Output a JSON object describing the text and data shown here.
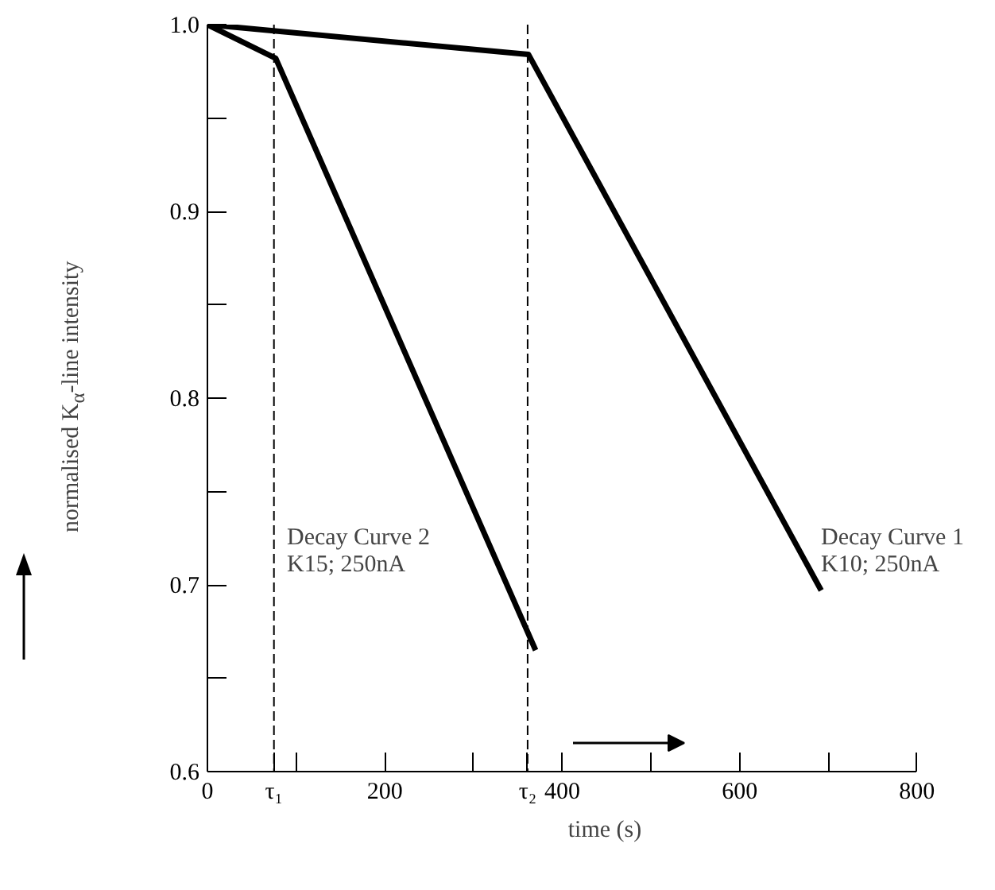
{
  "chart_data": {
    "type": "line",
    "xlabel": "time (s)",
    "ylabel": "normalised K$_{α}$-line intensity",
    "series": [
      {
        "x": [
          0,
          362,
          692
        ],
        "values": [
          1.0,
          0.984,
          0.697
        ],
        "color": "#000000"
      },
      {
        "x": [
          0,
          77,
          370
        ],
        "values": [
          1.0,
          0.982,
          0.665
        ],
        "color": "#000000"
      }
    ],
    "xlim": [
      0,
      800
    ],
    "ylim": [
      0.6,
      1.0
    ],
    "xticks": [
      0,
      {
        "value": 75,
        "label": "τ₁"
      },
      {
        "value": 100,
        "label": null
      },
      200,
      {
        "value": 300,
        "label": null
      },
      {
        "value": 361,
        "label": "τ₂"
      },
      400,
      {
        "value": 500,
        "label": null
      },
      600,
      {
        "value": 700,
        "label": null
      },
      800
    ],
    "yticks": [
      {
        "value": 0.6,
        "label": "0.6"
      },
      {
        "value": 0.65,
        "label": null
      },
      {
        "value": 0.7,
        "label": "0.7"
      },
      {
        "value": 0.75,
        "label": null
      },
      {
        "value": 0.8,
        "label": "0.8"
      },
      {
        "value": 0.85,
        "label": null
      },
      {
        "value": 0.9,
        "label": "0.9"
      },
      {
        "value": 0.95,
        "label": null
      },
      {
        "value": 1.0,
        "label": "1.0"
      }
    ],
    "ref_lines": [
      {
        "axis": "x",
        "value": 75,
        "line_style": "dashed",
        "color": "#000000"
      },
      {
        "axis": "x",
        "value": 361,
        "line_style": "dashed",
        "color": "#000000"
      }
    ],
    "annotations": [
      "Decay Curve 2",
      "K15; 250nA",
      "Decay Curve 1",
      "K10; 250nA"
    ],
    "grid": false,
    "line_style": "solid",
    "marker": "none"
  }
}
